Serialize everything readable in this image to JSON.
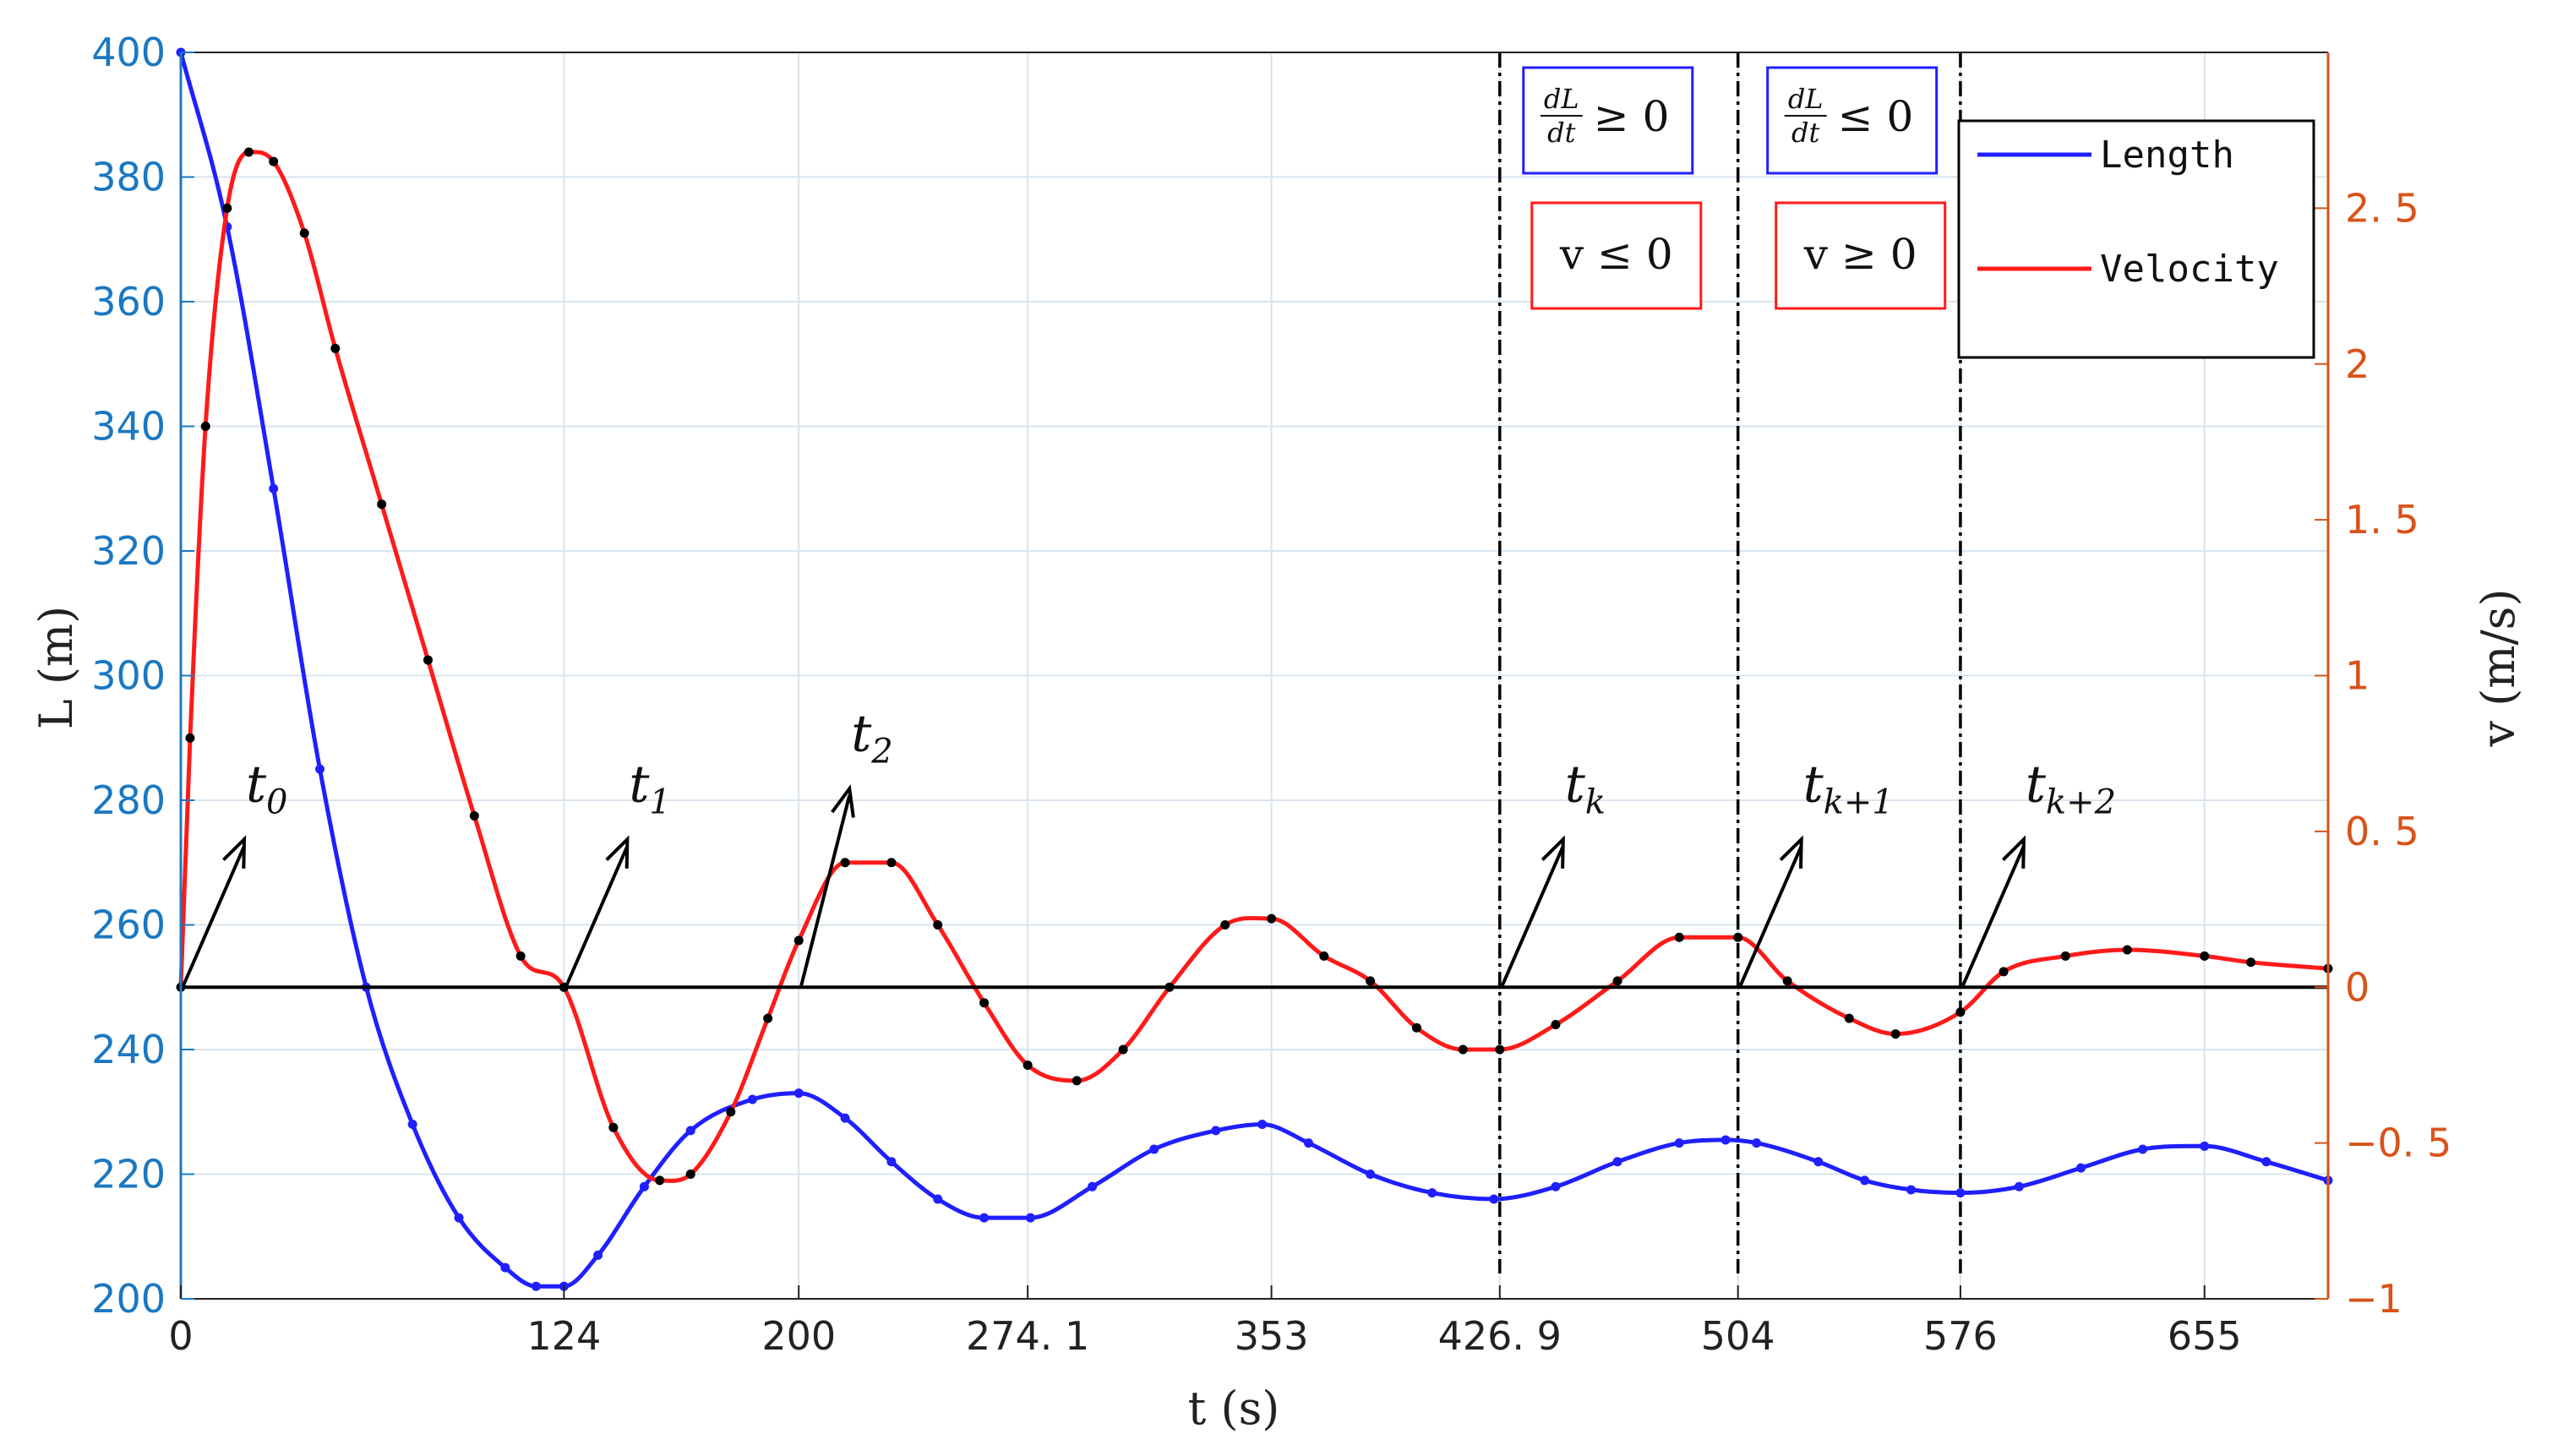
{
  "chart_data": {
    "type": "line",
    "xlabel": "t (s)",
    "ylabel_left": "L (m)",
    "ylabel_right": "v (m/s)",
    "xlim": [
      0,
      695
    ],
    "ylim_left": [
      200,
      400
    ],
    "ylim_right": [
      -1,
      3
    ],
    "grid": true,
    "x_ticks": [
      0,
      124,
      200,
      274.1,
      353,
      426.9,
      504,
      576,
      655
    ],
    "x_tick_labels": [
      "0",
      "124",
      "200",
      "274. 1",
      "353",
      "426. 9",
      "504",
      "576",
      "655"
    ],
    "y_left_ticks": [
      200,
      220,
      240,
      260,
      280,
      300,
      320,
      340,
      360,
      380,
      400
    ],
    "y_right_ticks": [
      -1,
      -0.5,
      0,
      0.5,
      1,
      1.5,
      2,
      2.5
    ],
    "y_right_tick_labels": [
      "−1",
      "−0. 5",
      "0",
      "0. 5",
      "1",
      "1. 5",
      "2",
      "2. 5"
    ],
    "series": [
      {
        "name": "Length",
        "axis": "left",
        "color": "#1f1fff",
        "x": [
          0,
          15,
          30,
          45,
          60,
          75,
          90,
          105,
          115,
          124,
          135,
          150,
          165,
          185,
          200,
          215,
          230,
          245,
          260,
          275,
          295,
          315,
          335,
          350,
          365,
          385,
          405,
          425,
          445,
          465,
          485,
          500,
          510,
          530,
          545,
          560,
          576,
          595,
          615,
          635,
          655,
          675,
          695
        ],
        "y": [
          400,
          372,
          330,
          285,
          250,
          228,
          213,
          205,
          202,
          202,
          207,
          218,
          227,
          232,
          233,
          229,
          222,
          216,
          213,
          213,
          218,
          224,
          227,
          228,
          225,
          220,
          217,
          216,
          218,
          222,
          225,
          225.5,
          225,
          222,
          219,
          217.5,
          217,
          218,
          221,
          224,
          224.5,
          222,
          219
        ]
      },
      {
        "name": "Velocity",
        "axis": "right",
        "color": "#ff1a1a",
        "x": [
          0,
          3,
          8,
          15,
          22,
          30,
          40,
          50,
          65,
          80,
          95,
          110,
          124,
          140,
          155,
          165,
          178,
          190,
          200,
          215,
          230,
          245,
          260,
          274.1,
          290,
          305,
          320,
          338,
          353,
          370,
          385,
          400,
          415,
          426.9,
          445,
          465,
          485,
          504,
          520,
          540,
          555,
          576,
          590,
          610,
          630,
          655,
          670,
          695
        ],
        "y": [
          0,
          0.8,
          1.8,
          2.5,
          2.68,
          2.65,
          2.42,
          2.05,
          1.55,
          1.05,
          0.55,
          0.1,
          0,
          -0.45,
          -0.62,
          -0.6,
          -0.4,
          -0.1,
          0.15,
          0.4,
          0.4,
          0.2,
          -0.05,
          -0.25,
          -0.3,
          -0.2,
          0,
          0.2,
          0.22,
          0.1,
          0.02,
          -0.13,
          -0.2,
          -0.2,
          -0.12,
          0.02,
          0.16,
          0.16,
          0.02,
          -0.1,
          -0.15,
          -0.08,
          0.05,
          0.1,
          0.12,
          0.1,
          0.08,
          0.06
        ]
      },
      {
        "name": "",
        "axis": "right",
        "color": "#000000",
        "x": [
          0,
          695
        ],
        "y": [
          0,
          0
        ]
      }
    ],
    "vertical_lines": [
      426.9,
      504,
      576
    ],
    "arrow_annotations": [
      {
        "label": "t",
        "sub": "0",
        "x": 0
      },
      {
        "label": "t",
        "sub": "1",
        "x": 124
      },
      {
        "label": "t",
        "sub": "2",
        "x": 200
      },
      {
        "label": "t",
        "sub": "k",
        "x": 426.9
      },
      {
        "label": "t",
        "sub": "k+1",
        "x": 504
      },
      {
        "label": "t",
        "sub": "k+2",
        "x": 576
      }
    ],
    "condition_boxes": [
      {
        "dl_text": "dL/dt ≥ 0",
        "dl_num": "dL",
        "dl_den": "dt",
        "dl_rel": "≥ 0",
        "v_text": "v ≤ 0"
      },
      {
        "dl_text": "dL/dt ≤ 0",
        "dl_num": "dL",
        "dl_den": "dt",
        "dl_rel": "≤ 0",
        "v_text": "v ≥ 0"
      }
    ],
    "legend": {
      "placement": "top-right",
      "entries": [
        "Length",
        "Velocity"
      ]
    }
  },
  "colors": {
    "left_axis": "#1a78c2",
    "right_axis": "#d95319",
    "length": "#1f1fff",
    "velocity": "#ff1a1a",
    "markers": "#000000",
    "grid": "#d8e4ef"
  }
}
